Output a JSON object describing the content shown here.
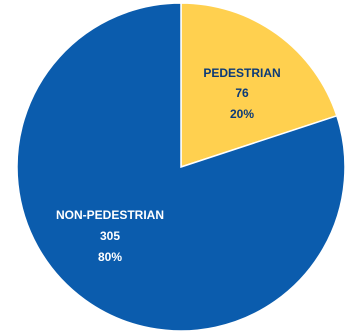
{
  "chart_data": {
    "type": "pie",
    "slices": [
      {
        "name": "PEDESTRIAN",
        "value": 76,
        "percent_label": "20%",
        "color": "#FFD04F",
        "label_color": "#0B3A78"
      },
      {
        "name": "NON-PEDESTRIAN",
        "value": 305,
        "percent_label": "80%",
        "color": "#0B5CAD",
        "label_color": "#FFFFFF"
      }
    ],
    "start_angle": "12 o'clock",
    "direction": "clockwise",
    "legend": "none",
    "border_color": "#FFFFFF"
  }
}
